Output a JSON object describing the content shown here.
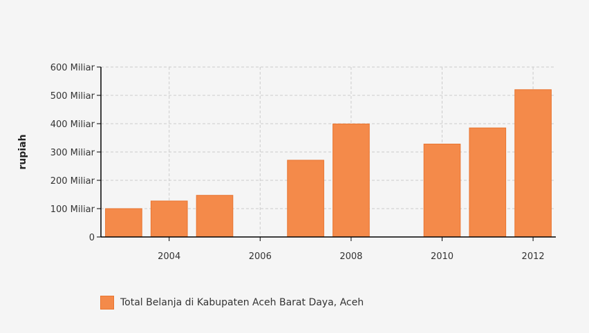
{
  "colors": {
    "bar": "#f48a4a",
    "bar_stroke": "#e8742f",
    "grid": "#cccccc",
    "axis": "#000000"
  },
  "chart_data": {
    "type": "bar",
    "x": [
      2003,
      2004,
      2005,
      2006,
      2007,
      2008,
      2009,
      2010,
      2011,
      2012
    ],
    "x_range": [
      2002.5,
      2012.5
    ],
    "x_ticks": [
      2004,
      2006,
      2008,
      2010,
      2012
    ],
    "x_tick_labels": [
      "2004",
      "2006",
      "2008",
      "2010",
      "2012"
    ],
    "y_range": [
      0,
      600
    ],
    "y_ticks": [
      0,
      100,
      200,
      300,
      400,
      500,
      600
    ],
    "y_tick_labels": [
      "0",
      "100 Miliar",
      "200 Miliar",
      "300 Miliar",
      "400 Miliar",
      "500 Miliar",
      "600 Miliar"
    ],
    "y_unit": "Miliar",
    "ylabel": "rupiah",
    "xlabel": "",
    "grid": true,
    "grid_style": "dashed",
    "legend_position": "bottom-left",
    "series": [
      {
        "name": "Total Belanja di Kabupaten Aceh Barat Daya, Aceh",
        "points": [
          {
            "x": 2003,
            "y": 100
          },
          {
            "x": 2004,
            "y": 127
          },
          {
            "x": 2005,
            "y": 147
          },
          {
            "x": 2007,
            "y": 271
          },
          {
            "x": 2008,
            "y": 399
          },
          {
            "x": 2010,
            "y": 328
          },
          {
            "x": 2011,
            "y": 385
          },
          {
            "x": 2012,
            "y": 520
          }
        ]
      }
    ]
  }
}
